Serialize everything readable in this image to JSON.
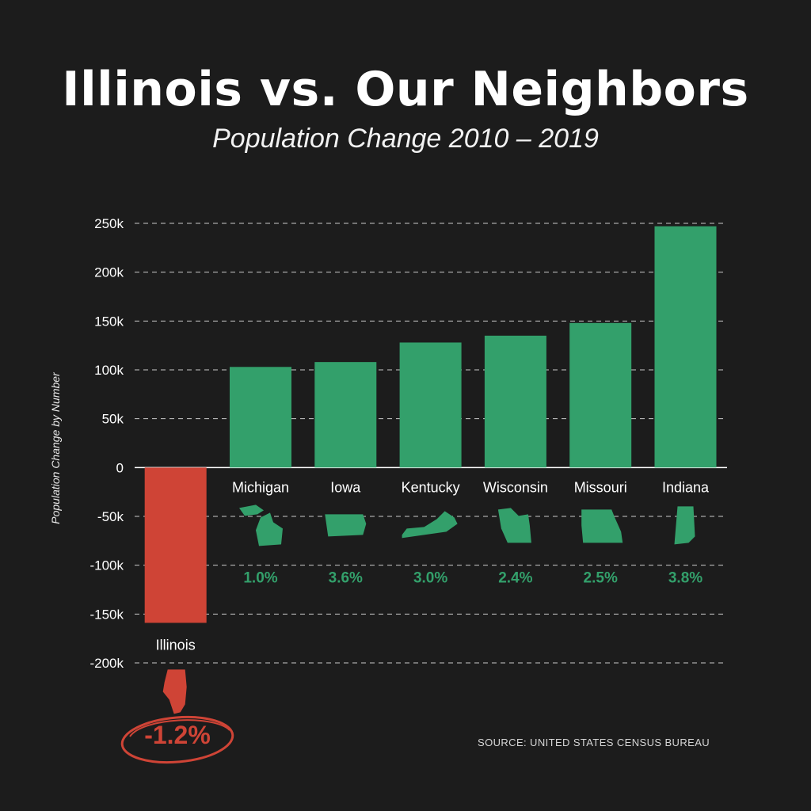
{
  "title": "Illinois vs. Our Neighbors",
  "subtitle": "Population Change 2010 – 2019",
  "source": "SOURCE: UNITED STATES CENSUS BUREAU",
  "colors": {
    "background": "#1c1c1c",
    "positive": "#33a06b",
    "negative": "#cf4436",
    "grid": "#dddddd"
  },
  "chart_data": {
    "type": "bar",
    "ylabel": "Population Change by Number",
    "ylim": [
      -200000,
      250000
    ],
    "yticks": [
      250000,
      200000,
      150000,
      100000,
      50000,
      0,
      -50000,
      -100000,
      -150000,
      -200000
    ],
    "ytick_labels": [
      "250k",
      "200k",
      "150k",
      "100k",
      "50k",
      "0",
      "-50k",
      "-100k",
      "-150k",
      "-200k"
    ],
    "grid": true,
    "categories": [
      "Illinois",
      "Michigan",
      "Iowa",
      "Kentucky",
      "Wisconsin",
      "Missouri",
      "Indiana"
    ],
    "values": [
      -159000,
      103000,
      108000,
      128000,
      135000,
      148000,
      247000
    ],
    "percent_labels": [
      "-1.2%",
      "1.0%",
      "3.6%",
      "3.0%",
      "2.4%",
      "2.5%",
      "3.8%"
    ],
    "icons": [
      "illinois-state-icon",
      "michigan-state-icon",
      "iowa-state-icon",
      "kentucky-state-icon",
      "wisconsin-state-icon",
      "missouri-state-icon",
      "indiana-state-icon"
    ]
  }
}
